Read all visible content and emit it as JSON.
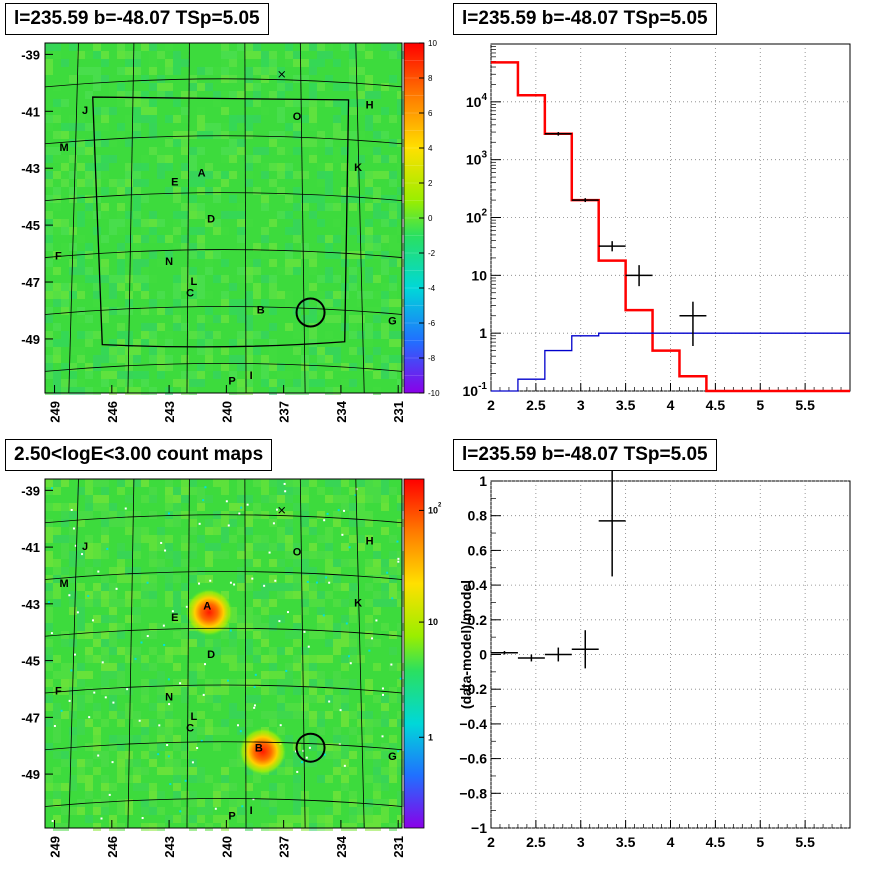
{
  "pads": {
    "skymap_title": "l=235.59 b=-48.07 TSp=5.05",
    "spectrum_title": "l=235.59 b=-48.07 TSp=5.05",
    "countmap_title": "2.50<logE<3.00 count maps",
    "residual_title": "l=235.59 b=-48.07 TSp=5.05"
  },
  "colors": {
    "data": "#000000",
    "model_total": "#ff0000",
    "model_component": "#0000cc",
    "sky_background": "#3ddb3d",
    "source_hot": "#ff2a00",
    "frame": "#000000",
    "grid": "#808080"
  },
  "chart_data": [
    {
      "type": "heatmap",
      "title": "l=235.59 b=-48.07 TSp=5.05",
      "xlabel": "",
      "ylabel": "",
      "x_ticks": [
        "249",
        "246",
        "243",
        "240",
        "237",
        "234",
        "231"
      ],
      "y_ticks": [
        "-39",
        "-41",
        "-43",
        "-45",
        "-47",
        "-49"
      ],
      "colorbar_scale": "linear",
      "colorbar_range": [
        -10,
        10
      ],
      "colorbar_ticks": [
        "10",
        "8",
        "6",
        "4",
        "2",
        "0",
        "-2",
        "-4",
        "-6",
        "-8",
        "-10"
      ],
      "source_labels": [
        {
          "label": "J",
          "l": 247.4,
          "b": -41.1
        },
        {
          "label": "H",
          "l": 232.5,
          "b": -40.9
        },
        {
          "label": "O",
          "l": 236.3,
          "b": -41.3
        },
        {
          "label": "M",
          "l": 248.5,
          "b": -42.4
        },
        {
          "label": "K",
          "l": 233.1,
          "b": -43.1
        },
        {
          "label": "E",
          "l": 242.7,
          "b": -43.6
        },
        {
          "label": "A",
          "l": 241.3,
          "b": -43.3
        },
        {
          "label": "D",
          "l": 240.8,
          "b": -44.9
        },
        {
          "label": "F",
          "l": 248.8,
          "b": -46.2
        },
        {
          "label": "N",
          "l": 243.0,
          "b": -46.4
        },
        {
          "label": "L",
          "l": 241.7,
          "b": -47.1
        },
        {
          "label": "C",
          "l": 241.9,
          "b": -47.5
        },
        {
          "label": "B",
          "l": 238.2,
          "b": -48.1
        },
        {
          "label": "G",
          "l": 231.3,
          "b": -48.5
        },
        {
          "label": "P",
          "l": 239.7,
          "b": -50.6
        },
        {
          "label": "I",
          "l": 238.7,
          "b": -50.4
        }
      ],
      "circle": {
        "l": 235.59,
        "b": -48.07
      },
      "cross": {
        "l": 237.1,
        "b": -39.7
      }
    },
    {
      "type": "line",
      "title": "l=235.59 b=-48.07 TSp=5.05",
      "xlabel": "",
      "ylabel": "",
      "y_scale": "log",
      "xlim": [
        2,
        6
      ],
      "ylim": [
        0.1,
        100000
      ],
      "x_ticks": [
        "2",
        "2.5",
        "3",
        "3.5",
        "4",
        "4.5",
        "5",
        "5.5"
      ],
      "y_ticks": [
        "10^{-1}",
        "1",
        "10",
        "10^{2}",
        "10^{3}",
        "10^{4}"
      ],
      "grid": true,
      "series": [
        {
          "name": "",
          "style": "step",
          "color_key": "model_total",
          "bin_edges": [
            2.0,
            2.3,
            2.6,
            2.9,
            3.2,
            3.5,
            3.8,
            4.1,
            4.4,
            6.0
          ],
          "values": [
            48000,
            13000,
            2800,
            200,
            18,
            2.5,
            0.5,
            0.18,
            0.1
          ]
        },
        {
          "name": "",
          "style": "step",
          "color_key": "model_component",
          "bin_edges": [
            2.0,
            2.3,
            2.6,
            2.9,
            3.2,
            3.5,
            6.0
          ],
          "values": [
            0.08,
            0.16,
            0.5,
            0.9,
            1.0,
            1.0
          ]
        },
        {
          "name": "",
          "style": "errorbars",
          "color_key": "data",
          "points": [
            {
              "x": 2.75,
              "xerr": 0.15,
              "y": 2800,
              "ylo": 2600,
              "yhi": 3000
            },
            {
              "x": 3.05,
              "xerr": 0.15,
              "y": 200,
              "ylo": 185,
              "yhi": 216
            },
            {
              "x": 3.35,
              "xerr": 0.15,
              "y": 32,
              "ylo": 26,
              "yhi": 39
            },
            {
              "x": 3.65,
              "xerr": 0.15,
              "y": 10,
              "ylo": 6.5,
              "yhi": 15
            },
            {
              "x": 4.25,
              "xerr": 0.15,
              "y": 2,
              "ylo": 0.6,
              "yhi": 3.5
            }
          ]
        }
      ]
    },
    {
      "type": "heatmap",
      "title": "2.50<logE<3.00 count maps",
      "xlabel": "",
      "ylabel": "",
      "x_ticks": [
        "249",
        "246",
        "243",
        "240",
        "237",
        "234",
        "231"
      ],
      "y_ticks": [
        "-39",
        "-41",
        "-43",
        "-45",
        "-47",
        "-49"
      ],
      "colorbar_scale": "log",
      "colorbar_ticks": [
        "10^{2}",
        "10",
        "1"
      ],
      "hot_sources": [
        {
          "label": "A",
          "l": 240.9,
          "b": -43.3
        },
        {
          "label": "B",
          "l": 238.1,
          "b": -48.2
        }
      ],
      "source_labels": [
        {
          "label": "J",
          "l": 247.4,
          "b": -41.1
        },
        {
          "label": "H",
          "l": 232.5,
          "b": -40.9
        },
        {
          "label": "O",
          "l": 236.3,
          "b": -41.3
        },
        {
          "label": "M",
          "l": 248.5,
          "b": -42.4
        },
        {
          "label": "K",
          "l": 233.1,
          "b": -43.1
        },
        {
          "label": "E",
          "l": 242.7,
          "b": -43.6
        },
        {
          "label": "A",
          "l": 241.0,
          "b": -43.2
        },
        {
          "label": "D",
          "l": 240.8,
          "b": -44.9
        },
        {
          "label": "F",
          "l": 248.8,
          "b": -46.2
        },
        {
          "label": "N",
          "l": 243.0,
          "b": -46.4
        },
        {
          "label": "L",
          "l": 241.7,
          "b": -47.1
        },
        {
          "label": "C",
          "l": 241.9,
          "b": -47.5
        },
        {
          "label": "B",
          "l": 238.3,
          "b": -48.2
        },
        {
          "label": "G",
          "l": 231.3,
          "b": -48.5
        },
        {
          "label": "P",
          "l": 239.7,
          "b": -50.6
        },
        {
          "label": "I",
          "l": 238.7,
          "b": -50.4
        }
      ],
      "circle": {
        "l": 235.59,
        "b": -48.07
      },
      "cross": {
        "l": 237.1,
        "b": -39.7
      }
    },
    {
      "type": "scatter",
      "title": "l=235.59 b=-48.07 TSp=5.05",
      "xlabel": "",
      "ylabel": "(data-model)/model",
      "xlim": [
        2,
        6
      ],
      "ylim": [
        -1,
        1
      ],
      "x_ticks": [
        "2",
        "2.5",
        "3",
        "3.5",
        "4",
        "4.5",
        "5",
        "5.5"
      ],
      "y_ticks": [
        "1",
        "0.8",
        "0.6",
        "0.4",
        "0.2",
        "0",
        "−0.2",
        "−0.4",
        "−0.6",
        "−0.8",
        "−1"
      ],
      "grid": true,
      "series": [
        {
          "name": "",
          "style": "errorbars",
          "color_key": "data",
          "points": [
            {
              "x": 2.15,
              "xerr": 0.15,
              "y": 0.01,
              "yerr": 0.01
            },
            {
              "x": 2.45,
              "xerr": 0.15,
              "y": -0.02,
              "yerr": 0.02
            },
            {
              "x": 2.75,
              "xerr": 0.15,
              "y": 0.0,
              "yerr": 0.04
            },
            {
              "x": 3.05,
              "xerr": 0.15,
              "y": 0.03,
              "yerr": 0.11
            },
            {
              "x": 3.35,
              "xerr": 0.15,
              "y": 0.77,
              "yerr": 0.32
            }
          ]
        }
      ]
    }
  ]
}
